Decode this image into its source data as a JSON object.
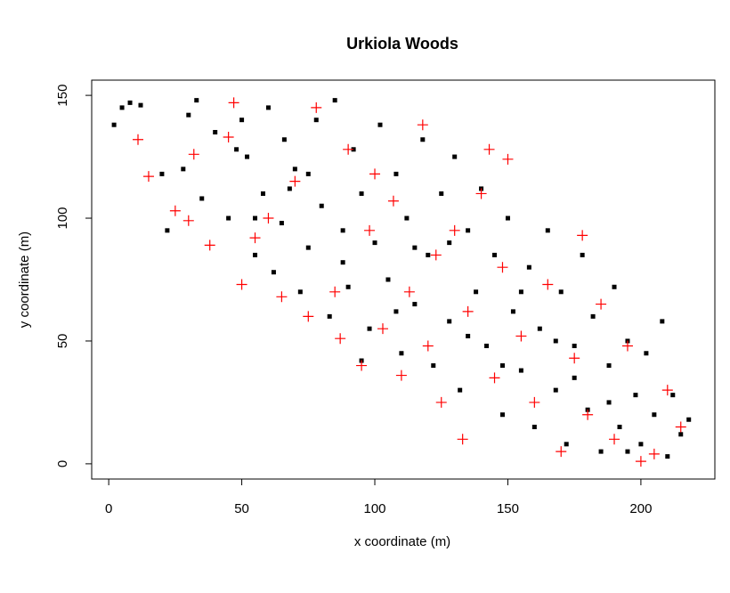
{
  "chart_data": {
    "type": "scatter",
    "title": "Urkiola Woods",
    "x_label": "x coordinate (m)",
    "y_label": "y coordinate (m)",
    "xlim": [
      -6.4,
      227.8
    ],
    "ylim": [
      -6.2,
      156.2
    ],
    "xticks": [
      0,
      50,
      100,
      150,
      200
    ],
    "yticks": [
      0,
      50,
      100,
      150
    ],
    "series": [
      {
        "color": "#000000",
        "marker": "square",
        "x": [
          2,
          5,
          8,
          12,
          20,
          22,
          28,
          33,
          35,
          40,
          45,
          50,
          52,
          55,
          58,
          60,
          62,
          65,
          66,
          70,
          72,
          75,
          78,
          80,
          83,
          85,
          88,
          90,
          92,
          95,
          98,
          100,
          102,
          105,
          108,
          110,
          112,
          115,
          118,
          120,
          122,
          125,
          128,
          130,
          132,
          135,
          138,
          140,
          142,
          145,
          148,
          150,
          152,
          155,
          158,
          160,
          162,
          165,
          168,
          170,
          172,
          175,
          178,
          180,
          182,
          185,
          188,
          190,
          192,
          195,
          198,
          200,
          202,
          205,
          208,
          210,
          212,
          215,
          218,
          30,
          48,
          68,
          88,
          108,
          128,
          148,
          168,
          188,
          55,
          75,
          95,
          115,
          135,
          155,
          175,
          195
        ],
        "values": [
          138,
          145,
          147,
          146,
          118,
          95,
          120,
          148,
          108,
          135,
          100,
          140,
          125,
          85,
          110,
          145,
          78,
          98,
          132,
          120,
          70,
          88,
          140,
          105,
          60,
          148,
          95,
          72,
          128,
          110,
          55,
          90,
          138,
          75,
          118,
          45,
          100,
          65,
          132,
          85,
          40,
          110,
          58,
          125,
          30,
          95,
          70,
          112,
          48,
          85,
          20,
          100,
          62,
          38,
          80,
          15,
          55,
          95,
          30,
          70,
          8,
          48,
          85,
          22,
          60,
          5,
          40,
          72,
          15,
          50,
          28,
          8,
          45,
          20,
          58,
          3,
          28,
          12,
          18,
          142,
          128,
          112,
          82,
          62,
          90,
          40,
          50,
          25,
          100,
          118,
          42,
          88,
          52,
          70,
          35,
          5
        ]
      },
      {
        "color": "#ff0000",
        "marker": "plus",
        "x": [
          11,
          15,
          25,
          30,
          32,
          38,
          45,
          47,
          50,
          55,
          60,
          65,
          70,
          75,
          78,
          85,
          87,
          90,
          95,
          98,
          100,
          103,
          107,
          110,
          113,
          118,
          120,
          123,
          125,
          130,
          133,
          135,
          140,
          143,
          145,
          148,
          150,
          155,
          160,
          165,
          170,
          175,
          178,
          180,
          185,
          190,
          195,
          200,
          205,
          210,
          215
        ],
        "values": [
          132,
          117,
          103,
          99,
          126,
          89,
          133,
          147,
          73,
          92,
          100,
          68,
          115,
          60,
          145,
          70,
          51,
          128,
          40,
          95,
          118,
          55,
          107,
          36,
          70,
          138,
          48,
          85,
          25,
          95,
          10,
          62,
          110,
          128,
          35,
          80,
          124,
          52,
          25,
          73,
          5,
          43,
          93,
          20,
          65,
          10,
          48,
          1,
          4,
          30,
          15
        ]
      }
    ]
  }
}
